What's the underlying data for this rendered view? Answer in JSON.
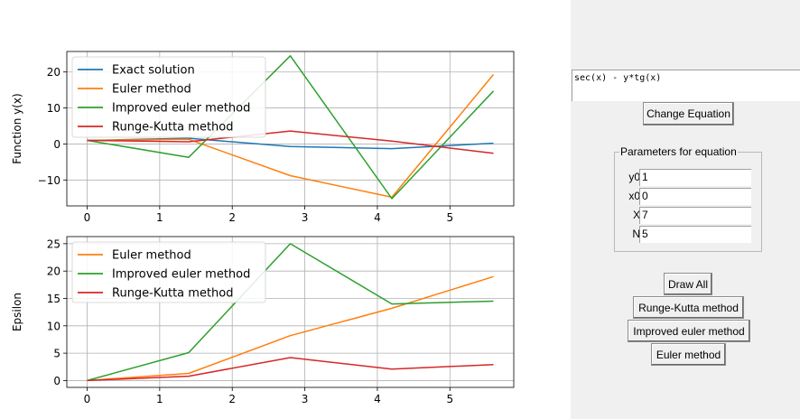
{
  "plots": {
    "top": {
      "ylabel": "Function y(x)",
      "xlim": [
        -0.28,
        5.88
      ],
      "ylim": [
        -17.2,
        25.7
      ],
      "xticks": [
        0,
        1,
        2,
        3,
        4,
        5
      ],
      "yticks": [
        -10,
        0,
        10,
        20
      ],
      "yticklabels": [
        "−10",
        "0",
        "10",
        "20"
      ],
      "legend": [
        "Exact solution",
        "Euler method",
        "Improved euler method",
        "Runge-Kutta method"
      ],
      "series": [
        {
          "name": "Exact solution",
          "color": "#1f77b4",
          "x": [
            0,
            1.4,
            2.8,
            4.2,
            5.6
          ],
          "y": [
            1,
            1.6,
            -0.7,
            -1.3,
            0.2
          ]
        },
        {
          "name": "Euler method",
          "color": "#ff7f0e",
          "x": [
            0,
            1.4,
            2.8,
            4.2,
            5.6
          ],
          "y": [
            1,
            1.3,
            -8.8,
            -14.8,
            19.3
          ]
        },
        {
          "name": "Improved euler method",
          "color": "#2ca02c",
          "x": [
            0,
            1.4,
            2.8,
            4.2,
            5.6
          ],
          "y": [
            1,
            -3.7,
            24.5,
            -15.2,
            14.7
          ]
        },
        {
          "name": "Runge-Kutta method",
          "color": "#d62728",
          "x": [
            0,
            1.4,
            2.8,
            4.2,
            5.6
          ],
          "y": [
            1,
            0.6,
            3.6,
            0.8,
            -2.6
          ]
        }
      ]
    },
    "bottom": {
      "ylabel": "Epsilon",
      "xlim": [
        -0.28,
        5.88
      ],
      "ylim": [
        -1.25,
        26.3
      ],
      "xticks": [
        0,
        1,
        2,
        3,
        4,
        5
      ],
      "yticks": [
        0,
        5,
        10,
        15,
        20,
        25
      ],
      "yticklabels": [
        "0",
        "5",
        "10",
        "15",
        "20",
        "25"
      ],
      "legend": [
        "Euler method",
        "Improved euler method",
        "Runge-Kutta method"
      ],
      "series": [
        {
          "name": "Euler method",
          "color": "#ff7f0e",
          "x": [
            0,
            1.4,
            2.8,
            4.2,
            5.6
          ],
          "y": [
            0,
            1.3,
            8.2,
            13.2,
            19
          ]
        },
        {
          "name": "Improved euler method",
          "color": "#2ca02c",
          "x": [
            0,
            1.4,
            2.8,
            4.2,
            5.6
          ],
          "y": [
            0,
            5.1,
            25,
            14,
            14.5
          ]
        },
        {
          "name": "Runge-Kutta method",
          "color": "#d62728",
          "x": [
            0,
            1.4,
            2.8,
            4.2,
            5.6
          ],
          "y": [
            0,
            0.8,
            4.2,
            2.1,
            2.9
          ]
        }
      ]
    }
  },
  "panel": {
    "equation": "sec(x) - y*tg(x)",
    "change_equation_label": "Change Equation",
    "params_title": "Parameters for equation",
    "params": [
      {
        "label": "y0",
        "value": "1"
      },
      {
        "label": "x0",
        "value": "0"
      },
      {
        "label": "X",
        "value": "7"
      },
      {
        "label": "N",
        "value": "5"
      }
    ],
    "draw_all_label": "Draw All",
    "runge_kutta_label": "Runge-Kutta method",
    "improved_euler_label": "Improved euler method",
    "euler_label": "Euler method"
  }
}
